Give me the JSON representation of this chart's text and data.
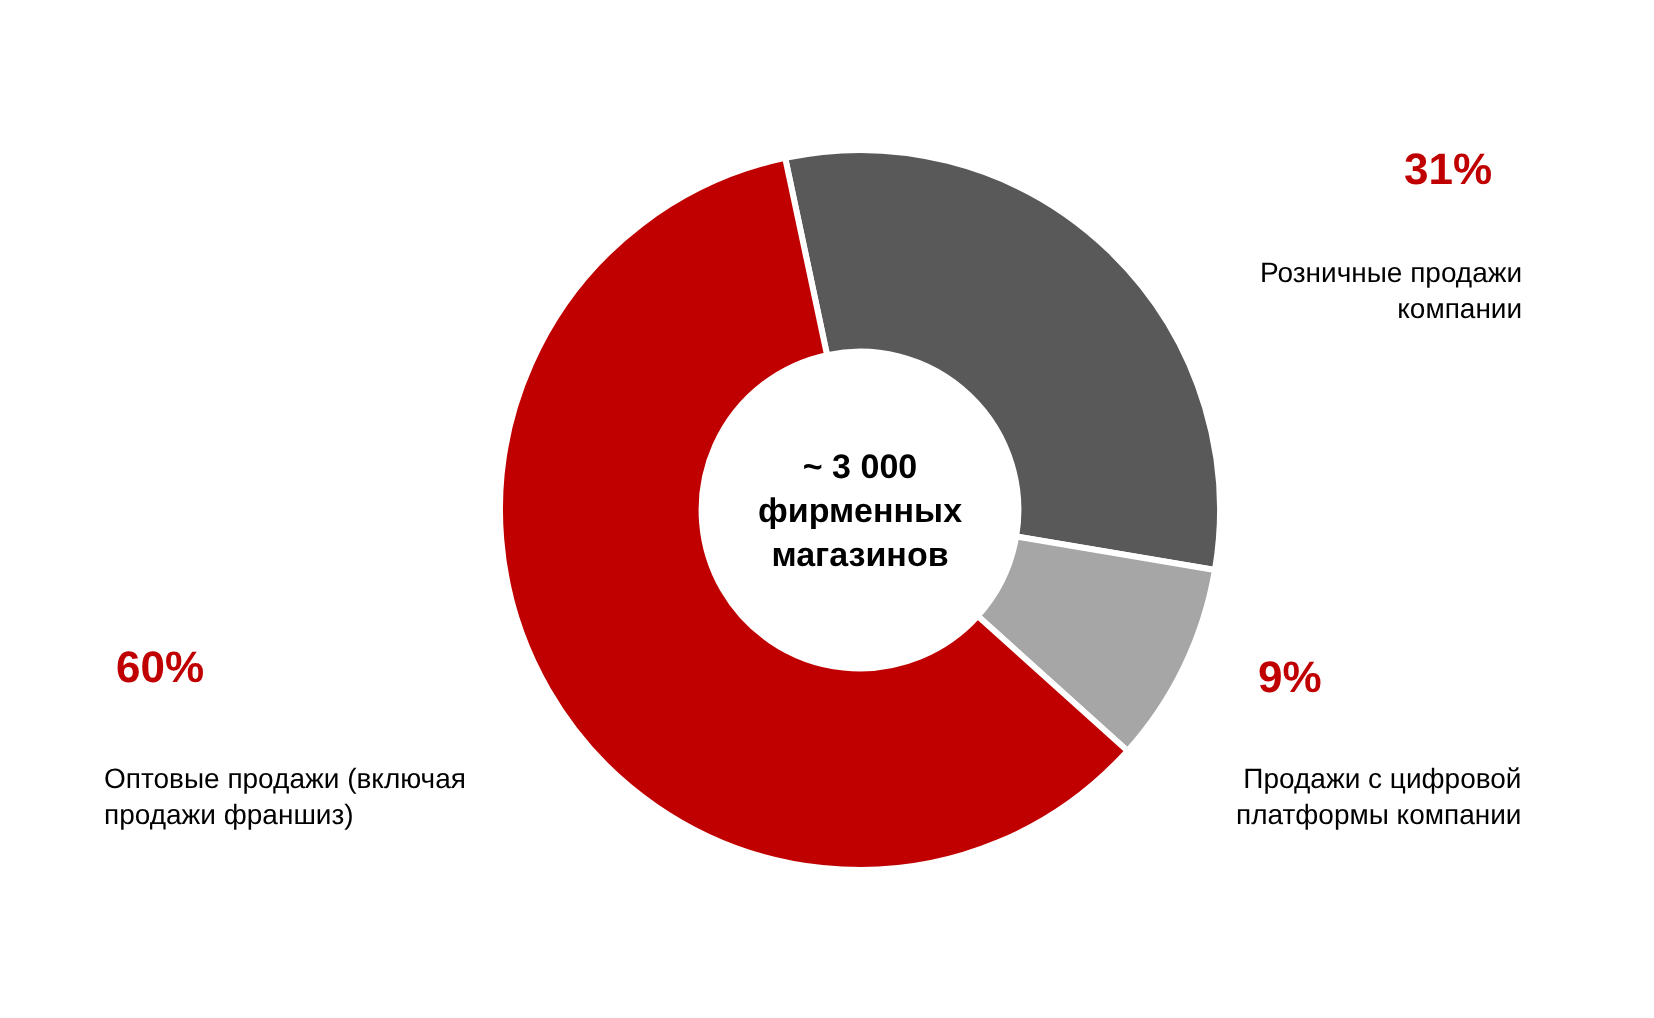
{
  "chart_data": {
    "type": "donut",
    "categories": [
      "Розничные продажи компании",
      "Продажи с цифровой платформы компании",
      "Оптовые продажи (включая продажи франшиз)"
    ],
    "values": [
      31,
      9,
      60
    ],
    "value_labels": [
      "31%",
      "9%",
      "60%"
    ],
    "colors": [
      "#595959",
      "#a6a6a6",
      "#c00000"
    ],
    "annotations": [
      "~ 3 000 фирменных магазинов"
    ],
    "legend": false
  }
}
